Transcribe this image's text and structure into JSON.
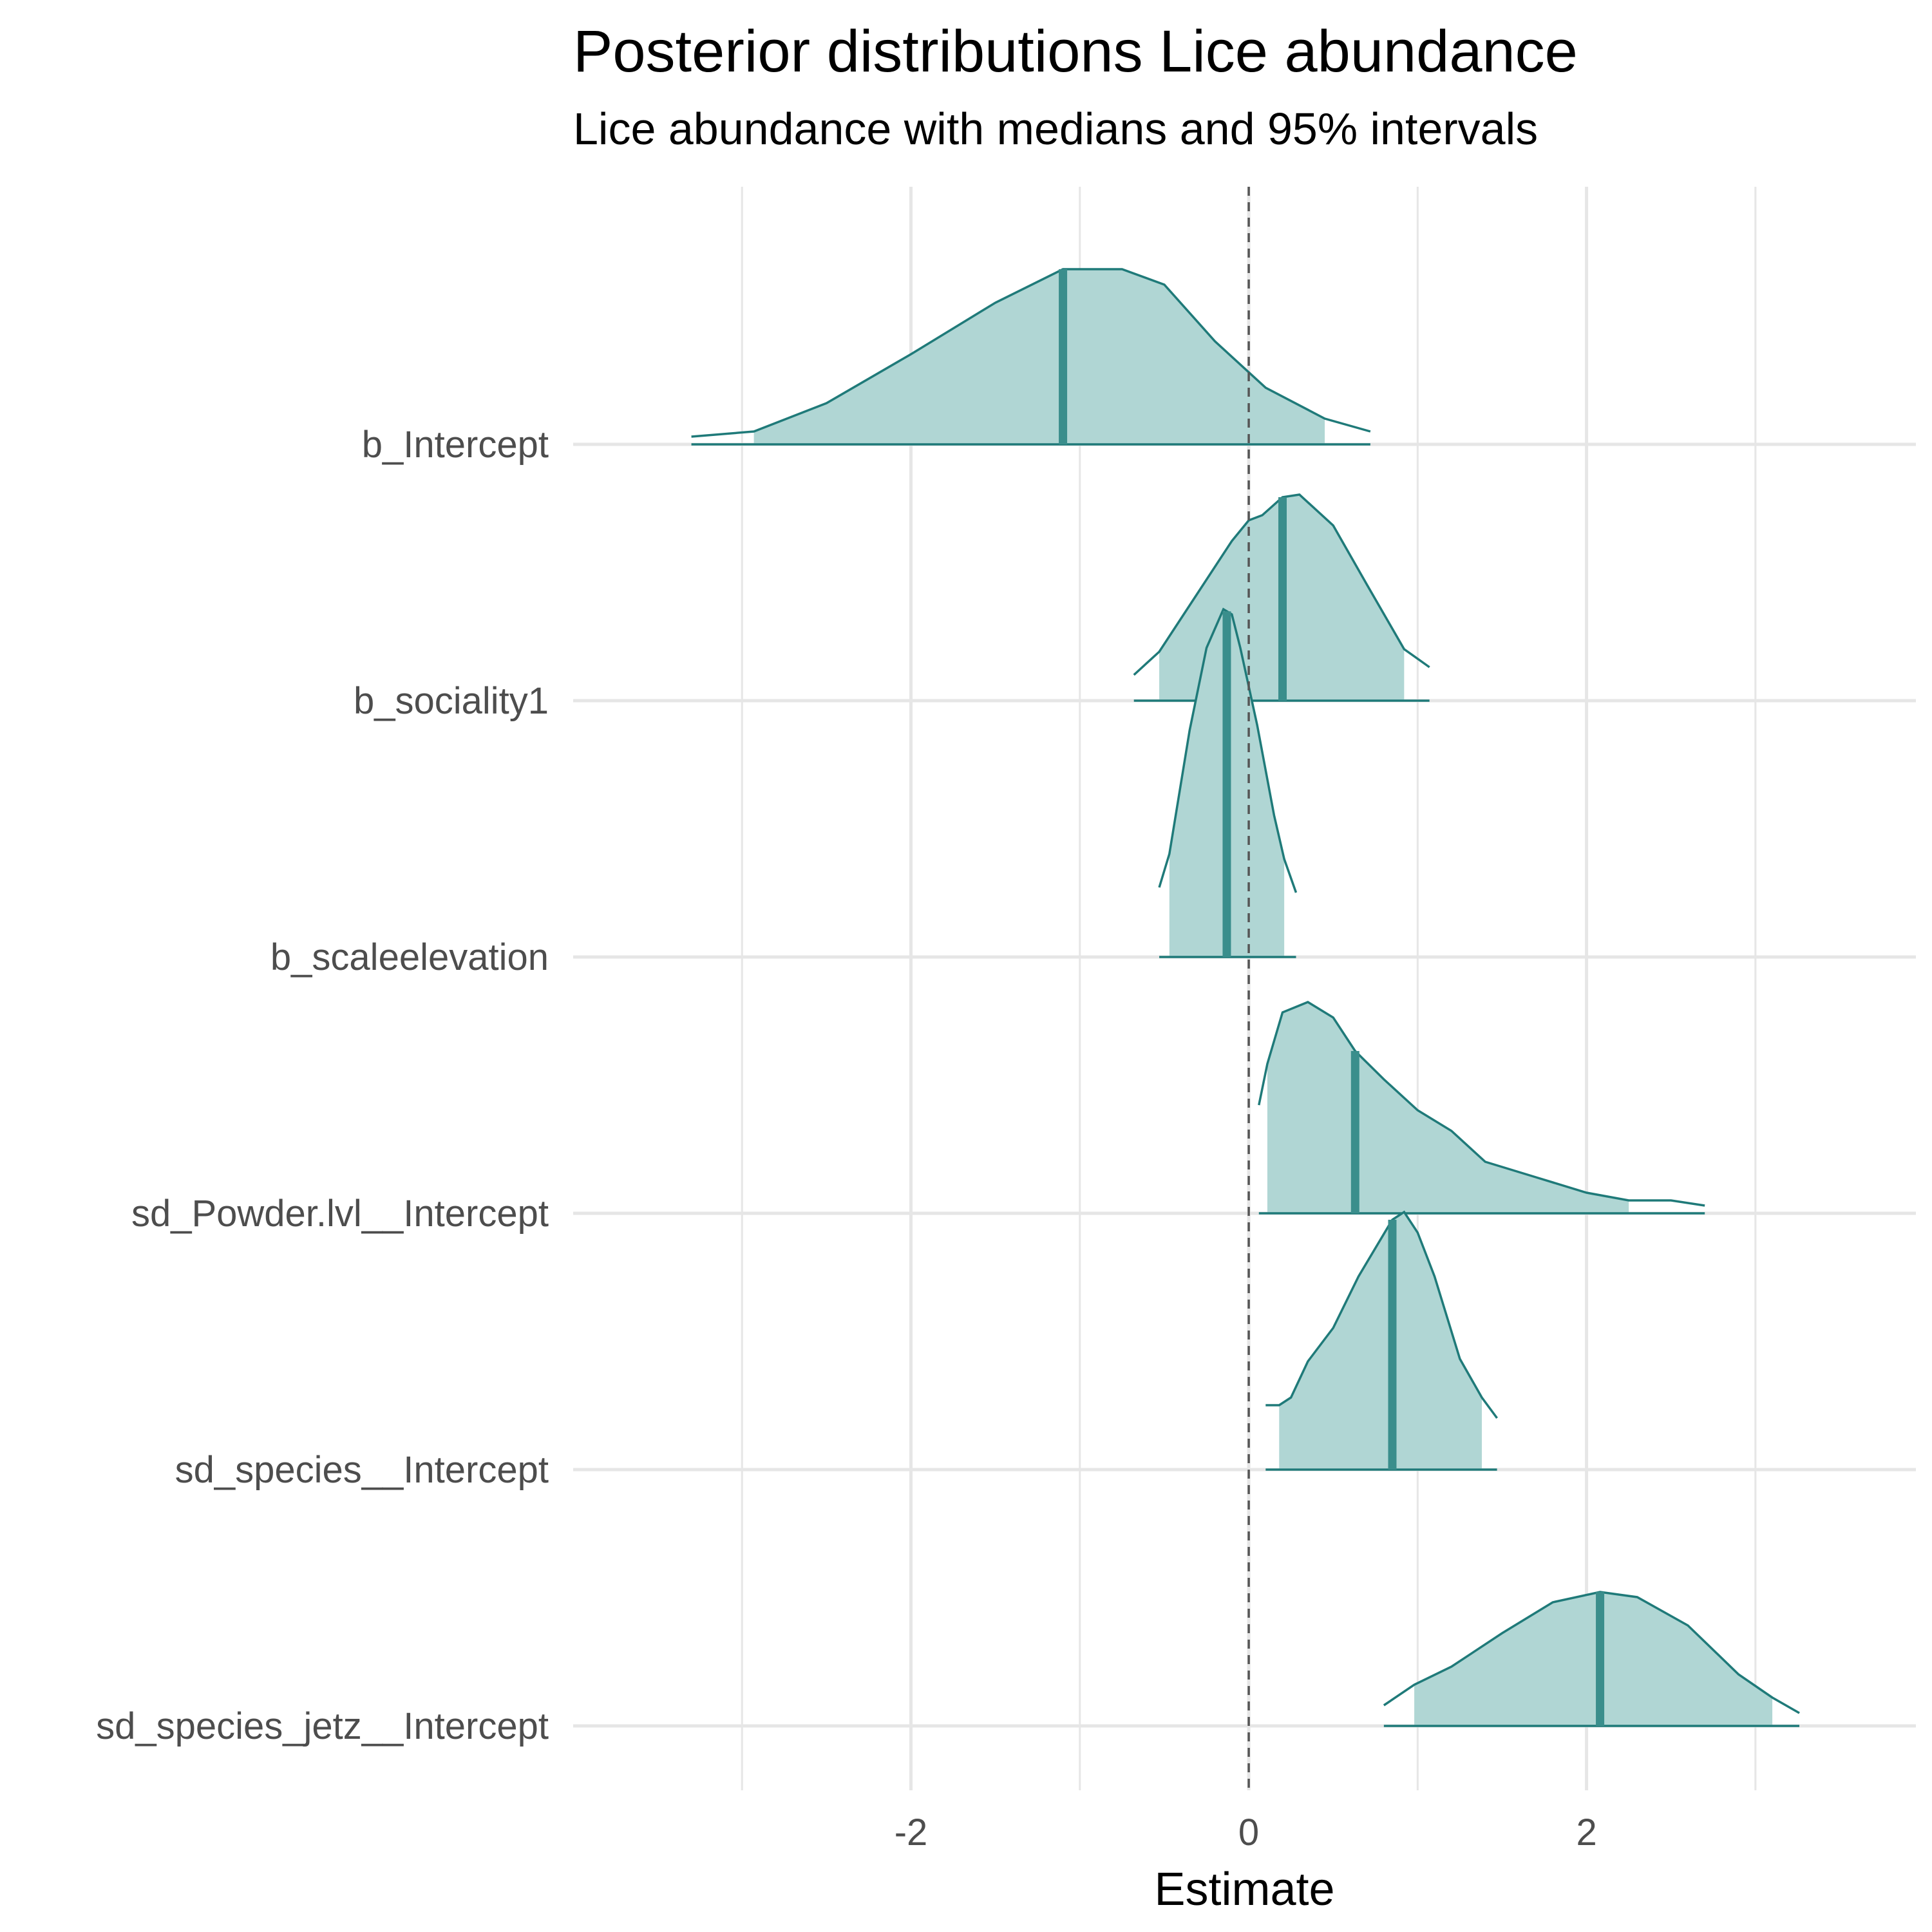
{
  "chart_data": {
    "type": "density_ridges",
    "title": "Posterior distributions Lice abundance",
    "subtitle": "Lice abundance with medians and 95% intervals",
    "xlabel": "Estimate",
    "ylabel": "",
    "xlim": [
      -4.0,
      3.95
    ],
    "x_ticks": [
      -2,
      0,
      2
    ],
    "reference_line_x": 0,
    "grid": true,
    "colors": {
      "fill": "#b0d6d4",
      "line": "#1f7a79",
      "median": "#3a8e8c",
      "reference": "#555555",
      "grid": "#e6e6e6"
    },
    "parameters": [
      {
        "name": "b_Intercept",
        "median": -1.1,
        "ci95": [
          -2.93,
          0.45
        ],
        "range": [
          -3.3,
          0.72
        ],
        "density": [
          [
            -3.3,
            0.03
          ],
          [
            -2.93,
            0.05
          ],
          [
            -2.5,
            0.16
          ],
          [
            -2.0,
            0.35
          ],
          [
            -1.5,
            0.55
          ],
          [
            -1.1,
            0.68
          ],
          [
            -0.75,
            0.68
          ],
          [
            -0.5,
            0.62
          ],
          [
            -0.2,
            0.4
          ],
          [
            0.1,
            0.22
          ],
          [
            0.45,
            0.1
          ],
          [
            0.72,
            0.05
          ]
        ]
      },
      {
        "name": "b_sociality1",
        "median": 0.2,
        "ci95": [
          -0.53,
          0.92
        ],
        "range": [
          -0.68,
          1.07
        ],
        "density": [
          [
            -0.68,
            0.1
          ],
          [
            -0.53,
            0.19
          ],
          [
            -0.3,
            0.42
          ],
          [
            -0.1,
            0.62
          ],
          [
            0.0,
            0.7
          ],
          [
            0.08,
            0.72
          ],
          [
            0.2,
            0.79
          ],
          [
            0.3,
            0.8
          ],
          [
            0.5,
            0.68
          ],
          [
            0.7,
            0.45
          ],
          [
            0.92,
            0.2
          ],
          [
            1.07,
            0.13
          ]
        ]
      },
      {
        "name": "b_scaleelevation",
        "median": -0.13,
        "ci95": [
          -0.47,
          0.21
        ],
        "range": [
          -0.53,
          0.28
        ],
        "density": [
          [
            -0.53,
            0.27
          ],
          [
            -0.47,
            0.4
          ],
          [
            -0.35,
            0.88
          ],
          [
            -0.25,
            1.2
          ],
          [
            -0.15,
            1.35
          ],
          [
            -0.1,
            1.33
          ],
          [
            -0.05,
            1.2
          ],
          [
            0.05,
            0.9
          ],
          [
            0.15,
            0.55
          ],
          [
            0.21,
            0.38
          ],
          [
            0.28,
            0.25
          ]
        ]
      },
      {
        "name": "sd_Powder.lvl__Intercept",
        "median": 0.63,
        "ci95": [
          0.11,
          2.25
        ],
        "range": [
          0.06,
          2.7
        ],
        "density": [
          [
            0.06,
            0.42
          ],
          [
            0.11,
            0.58
          ],
          [
            0.2,
            0.78
          ],
          [
            0.35,
            0.82
          ],
          [
            0.5,
            0.76
          ],
          [
            0.63,
            0.63
          ],
          [
            0.8,
            0.52
          ],
          [
            1.0,
            0.4
          ],
          [
            1.2,
            0.32
          ],
          [
            1.4,
            0.2
          ],
          [
            1.7,
            0.14
          ],
          [
            2.0,
            0.08
          ],
          [
            2.25,
            0.05
          ],
          [
            2.5,
            0.05
          ],
          [
            2.7,
            0.03
          ]
        ]
      },
      {
        "name": "sd_species__Intercept",
        "median": 0.85,
        "ci95": [
          0.18,
          1.38
        ],
        "range": [
          0.1,
          1.47
        ],
        "density": [
          [
            0.1,
            0.25
          ],
          [
            0.18,
            0.25
          ],
          [
            0.25,
            0.28
          ],
          [
            0.35,
            0.42
          ],
          [
            0.5,
            0.55
          ],
          [
            0.65,
            0.75
          ],
          [
            0.85,
            0.97
          ],
          [
            0.92,
            1.0
          ],
          [
            1.0,
            0.92
          ],
          [
            1.1,
            0.75
          ],
          [
            1.25,
            0.43
          ],
          [
            1.38,
            0.28
          ],
          [
            1.47,
            0.2
          ]
        ]
      },
      {
        "name": "sd_species_jetz__Intercept",
        "median": 2.08,
        "ci95": [
          0.98,
          3.1
        ],
        "range": [
          0.8,
          3.26
        ],
        "density": [
          [
            0.8,
            0.08
          ],
          [
            0.98,
            0.16
          ],
          [
            1.2,
            0.23
          ],
          [
            1.5,
            0.36
          ],
          [
            1.8,
            0.48
          ],
          [
            2.08,
            0.52
          ],
          [
            2.3,
            0.5
          ],
          [
            2.6,
            0.39
          ],
          [
            2.9,
            0.2
          ],
          [
            3.1,
            0.11
          ],
          [
            3.26,
            0.05
          ]
        ]
      }
    ]
  }
}
